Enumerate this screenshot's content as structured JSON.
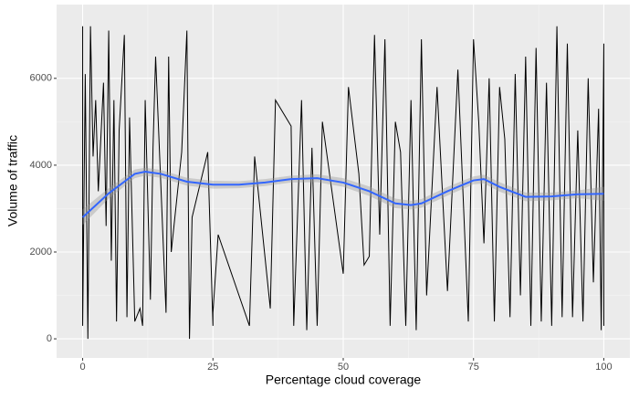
{
  "chart_data": {
    "type": "line",
    "x_label": "Percentage cloud coverage",
    "y_label": "Volume of traffic",
    "xlim": [
      -5,
      105
    ],
    "ylim": [
      -440,
      7700
    ],
    "xticks": [
      0,
      25,
      50,
      75,
      100
    ],
    "yticks": [
      0,
      2000,
      4000,
      6000
    ],
    "grid": true,
    "series": [
      {
        "kind": "line",
        "color": "#000000",
        "x": [
          0,
          0,
          0.5,
          1,
          1.5,
          2,
          2.5,
          3,
          4,
          4.5,
          5,
          5.5,
          6,
          6.5,
          7,
          8,
          8.5,
          9,
          10,
          11,
          11.5,
          12,
          13,
          13.5,
          14,
          16,
          16.5,
          17,
          19,
          20,
          20.5,
          21,
          24,
          25,
          25,
          26,
          32,
          33,
          36,
          37,
          40,
          40.5,
          42,
          43,
          44,
          45,
          46,
          50,
          51,
          53,
          54,
          55,
          56,
          57,
          58,
          59,
          60,
          61,
          62,
          63,
          64,
          65,
          66,
          68,
          70,
          72,
          74,
          75,
          76,
          77,
          78,
          79,
          80,
          81,
          82,
          83,
          84,
          85,
          86,
          87,
          88,
          89,
          90,
          91,
          92,
          93,
          94,
          95,
          96,
          97,
          98,
          99,
          99.5,
          100,
          100
        ],
        "values": [
          7200,
          300,
          6100,
          0,
          7200,
          4200,
          5500,
          3400,
          5900,
          2600,
          7100,
          1800,
          5500,
          400,
          4800,
          7000,
          500,
          5100,
          400,
          700,
          300,
          5500,
          900,
          4400,
          6500,
          600,
          6500,
          2000,
          4300,
          7100,
          0,
          2800,
          4300,
          300,
          600,
          2400,
          300,
          4200,
          700,
          5500,
          4900,
          300,
          5500,
          200,
          4400,
          300,
          5000,
          1500,
          5800,
          3800,
          1700,
          1900,
          7000,
          2400,
          6900,
          300,
          5000,
          4300,
          300,
          5500,
          200,
          6900,
          1000,
          5800,
          1100,
          6200,
          400,
          6900,
          5000,
          2200,
          6000,
          400,
          5800,
          4600,
          500,
          6100,
          1000,
          6500,
          300,
          6700,
          400,
          5900,
          300,
          7200,
          500,
          6800,
          500,
          4800,
          400,
          6000,
          1300,
          5300,
          200,
          6800,
          300
        ]
      },
      {
        "kind": "smooth",
        "color": "#3366ff",
        "band_color": "#999999",
        "x": [
          0,
          5,
          10,
          12,
          15,
          20,
          25,
          30,
          35,
          40,
          45,
          50,
          55,
          60,
          63,
          65,
          70,
          75,
          77,
          80,
          85,
          90,
          95,
          100
        ],
        "values": [
          2800,
          3350,
          3800,
          3850,
          3800,
          3620,
          3550,
          3550,
          3600,
          3680,
          3700,
          3600,
          3400,
          3120,
          3080,
          3120,
          3400,
          3650,
          3680,
          3500,
          3270,
          3280,
          3330,
          3340
        ],
        "lower": [
          2620,
          3230,
          3700,
          3760,
          3710,
          3530,
          3460,
          3470,
          3520,
          3600,
          3610,
          3500,
          3290,
          3010,
          2980,
          3020,
          3300,
          3560,
          3580,
          3390,
          3170,
          3190,
          3240,
          3180
        ],
        "upper": [
          2980,
          3470,
          3900,
          3940,
          3890,
          3710,
          3640,
          3630,
          3680,
          3760,
          3790,
          3700,
          3510,
          3230,
          3180,
          3220,
          3500,
          3740,
          3780,
          3610,
          3370,
          3370,
          3420,
          3500
        ]
      }
    ]
  }
}
